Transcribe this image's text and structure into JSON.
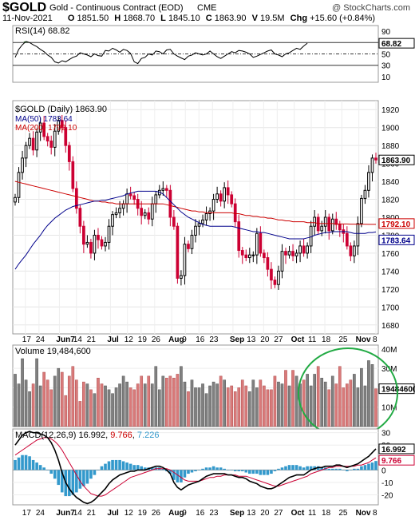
{
  "header": {
    "symbol": "$GOLD",
    "description": "Gold - Continuous Contract (EOD)",
    "exchange": "CME",
    "watermark": "@ StockCharts.com",
    "date": "11-Nov-2021",
    "open_label": "O",
    "open": "1851.50",
    "high_label": "H",
    "high": "1868.70",
    "low_label": "L",
    "low": "1845.10",
    "close_label": "C",
    "close": "1863.90",
    "volume_label": "V",
    "volume": "19.5M",
    "change_label": "Chg",
    "change": "+15.60 (+0.84%)"
  },
  "colors": {
    "up_candle": "#000000",
    "down_candle": "#cc0033",
    "ma50": "#00008b",
    "ma200": "#cc0000",
    "rsi_line": "#000000",
    "rsi_fill": "#3a7d3a",
    "vol_up": "#808080",
    "vol_down": "#d97a7a",
    "macd_hist": "#3399cc",
    "annotation_circle": "#22aa44"
  },
  "chart_data": [
    {
      "type": "line",
      "panel": "rsi",
      "label": "RSI(14) 68.82",
      "last_value_label": "68.82",
      "y_ticks": [
        "90",
        "70",
        "50",
        "30",
        "10"
      ],
      "ylim": [
        0,
        100
      ],
      "guides": [
        70,
        50,
        30
      ],
      "values": [
        44,
        58,
        66,
        72,
        70,
        66,
        63,
        58,
        54,
        48,
        44,
        36,
        34,
        38,
        36,
        40,
        44,
        46,
        52,
        50,
        48,
        45,
        50,
        47,
        46,
        56,
        55,
        60,
        57,
        53,
        58,
        56,
        51,
        36,
        33,
        42,
        44,
        50,
        48,
        55,
        54,
        50,
        57,
        58,
        50,
        46,
        43,
        40,
        46,
        48,
        52,
        50,
        48,
        50,
        55,
        50,
        45,
        42,
        46,
        50,
        54,
        52,
        56,
        55,
        53,
        50,
        44,
        46,
        49,
        52,
        55,
        57,
        50,
        48,
        45,
        50,
        52,
        56,
        60,
        58,
        64,
        68.82
      ]
    },
    {
      "type": "candlestick",
      "panel": "price",
      "label": "$GOLD (Daily) 1863.90",
      "last_value_label": "1863.90",
      "ylim": [
        1670,
        1930
      ],
      "y_ticks": [
        "1920",
        "1900",
        "1880",
        "1860",
        "1840",
        "1820",
        "1800",
        "1780",
        "1760",
        "1740",
        "1720",
        "1700",
        "1680"
      ],
      "x_labels": [
        "17",
        "24",
        "Jun7",
        "14",
        "21",
        "Jul",
        "12",
        "19",
        "26",
        "Aug",
        "9",
        "16",
        "23",
        "Sep",
        "13",
        "20",
        "27",
        "Oct",
        "11",
        "18",
        "25",
        "Nov",
        "8"
      ],
      "x_positions": [
        3,
        7,
        13,
        18,
        22,
        28,
        33,
        37,
        41,
        46,
        50,
        54,
        58,
        64,
        69,
        73,
        77,
        82,
        87,
        91,
        96,
        101,
        106
      ],
      "closes": [
        1822,
        1850,
        1866,
        1880,
        1888,
        1875,
        1895,
        1905,
        1890,
        1885,
        1878,
        1896,
        1908,
        1900,
        1880,
        1862,
        1832,
        1810,
        1790,
        1770,
        1772,
        1760,
        1780,
        1775,
        1768,
        1772,
        1790,
        1803,
        1805,
        1810,
        1815,
        1826,
        1824,
        1820,
        1810,
        1802,
        1805,
        1798,
        1815,
        1825,
        1830,
        1832,
        1830,
        1800,
        1790,
        1732,
        1735,
        1770,
        1765,
        1780,
        1790,
        1793,
        1797,
        1804,
        1807,
        1820,
        1826,
        1818,
        1833,
        1825,
        1815,
        1795,
        1763,
        1758,
        1755,
        1758,
        1758,
        1782,
        1760,
        1755,
        1742,
        1730,
        1725,
        1740,
        1762,
        1758,
        1762,
        1757,
        1760,
        1768,
        1760,
        1768,
        1790,
        1800,
        1785,
        1790,
        1800,
        1785,
        1798,
        1792,
        1786,
        1782,
        1768,
        1757,
        1768,
        1793,
        1821,
        1830,
        1850,
        1866,
        1863.9
      ],
      "ma50": [
        1742,
        1748,
        1753,
        1758,
        1764,
        1770,
        1775,
        1780,
        1786,
        1791,
        1795,
        1799,
        1802,
        1805,
        1808,
        1810,
        1812,
        1813,
        1814,
        1815,
        1816,
        1817,
        1818,
        1818,
        1819,
        1819,
        1820,
        1821,
        1822,
        1823,
        1824,
        1826,
        1827,
        1828,
        1829,
        1829,
        1829,
        1829,
        1829,
        1829,
        1828,
        1826,
        1822,
        1818,
        1814,
        1810,
        1806,
        1803,
        1800,
        1798,
        1796,
        1794,
        1792,
        1791,
        1790,
        1790,
        1790,
        1790,
        1790,
        1790,
        1790,
        1789,
        1788,
        1787,
        1786,
        1785,
        1784,
        1784,
        1783,
        1783,
        1782,
        1781,
        1780,
        1779,
        1778,
        1777,
        1776,
        1776,
        1776,
        1776,
        1776,
        1777,
        1778,
        1780,
        1781,
        1782,
        1783,
        1783,
        1784,
        1784,
        1784,
        1784,
        1784,
        1783,
        1782,
        1782,
        1782,
        1782,
        1783,
        1783,
        1783.64
      ],
      "ma50_label": "MA(50) 1783.64",
      "ma50_last": "1783.64",
      "ma200": [
        1840,
        1839,
        1838,
        1837,
        1836,
        1835,
        1834,
        1833,
        1832,
        1831,
        1830,
        1829,
        1828,
        1827,
        1826,
        1825,
        1824,
        1823,
        1822,
        1821,
        1820,
        1819,
        1818,
        1818,
        1817,
        1817,
        1816,
        1816,
        1815,
        1815,
        1815,
        1815,
        1815,
        1815,
        1815,
        1815,
        1815,
        1815,
        1815,
        1815,
        1815,
        1815,
        1814,
        1813,
        1812,
        1811,
        1810,
        1809,
        1808,
        1807,
        1807,
        1806,
        1806,
        1805,
        1805,
        1805,
        1805,
        1805,
        1805,
        1805,
        1805,
        1804,
        1804,
        1803,
        1802,
        1802,
        1801,
        1801,
        1800,
        1800,
        1799,
        1799,
        1798,
        1797,
        1797,
        1796,
        1796,
        1795,
        1795,
        1795,
        1795,
        1794,
        1794,
        1794,
        1793,
        1793,
        1793,
        1793,
        1793,
        1792.5,
        1792.5,
        1792.5,
        1792.5,
        1792.3,
        1792.3,
        1792.2,
        1792.2,
        1792.2,
        1792.1,
        1792.1,
        1792.1
      ],
      "ma200_label": "MA(200) 1792.10",
      "ma200_last": "1792.10"
    },
    {
      "type": "bar",
      "panel": "volume",
      "label": "Volume 19,484,600",
      "last_value_label": "19484600",
      "ylim": [
        0,
        42
      ],
      "y_ticks": [
        "40M",
        "30M",
        "20M",
        "10M"
      ],
      "values": [
        27,
        22,
        35,
        24,
        18,
        22,
        35,
        21,
        28,
        24,
        19,
        26,
        30,
        28,
        16,
        26,
        31,
        24,
        13,
        23,
        22,
        19,
        17,
        25,
        22,
        21,
        19,
        17,
        20,
        22,
        26,
        23,
        20,
        19,
        22,
        26,
        22,
        26,
        22,
        31,
        19,
        26,
        25,
        26,
        25,
        27,
        31,
        23,
        18,
        24,
        20,
        20,
        22,
        17,
        21,
        23,
        22,
        26,
        24,
        20,
        21,
        18,
        20,
        24,
        21,
        18,
        24,
        20,
        24,
        21,
        19,
        19,
        26,
        23,
        22,
        29,
        21,
        29,
        26,
        22,
        24,
        27,
        21,
        27,
        31,
        25,
        23,
        19,
        26,
        22,
        31,
        20,
        22,
        24,
        27,
        20,
        30,
        21,
        34,
        32,
        19.5
      ]
    },
    {
      "type": "line",
      "panel": "macd",
      "label": "MACD(12,26,9) 16.992, 9.766, 7.226",
      "name_label": "MACD(12,26,9)",
      "macd_value": "16.992",
      "signal_value": "9.766",
      "hist_value": "7.226",
      "ylim": [
        -28,
        33
      ],
      "y_ticks": [
        "30",
        "20",
        "10",
        "0",
        "-10",
        "-20"
      ],
      "macd": [
        20,
        24,
        28,
        30,
        31,
        30,
        30,
        29,
        28,
        26,
        22,
        16,
        8,
        -2,
        -10,
        -15,
        -19,
        -22,
        -24,
        -26,
        -27,
        -26,
        -24,
        -21,
        -18,
        -15,
        -11,
        -8,
        -6,
        -4,
        -3,
        -2,
        -1,
        -1,
        0,
        0,
        0,
        1,
        2,
        3,
        3,
        2,
        0,
        -3,
        -10,
        -14,
        -16,
        -14,
        -12,
        -11,
        -10,
        -9,
        -7,
        -5,
        -4,
        -3,
        -3,
        -3,
        -3,
        -4,
        -4,
        -5,
        -6,
        -6,
        -7,
        -9,
        -10,
        -11,
        -13,
        -14,
        -15,
        -15,
        -14,
        -12,
        -10,
        -8,
        -6,
        -5,
        -4,
        -4,
        -4,
        -2,
        0,
        1,
        2,
        2,
        3,
        3,
        3,
        4,
        4,
        3,
        2,
        3,
        4,
        5,
        7,
        9,
        11,
        14,
        16.992
      ],
      "signal": [
        12,
        14,
        16,
        18,
        20,
        22,
        24,
        25,
        26,
        26,
        25,
        23,
        20,
        16,
        11,
        6,
        1,
        -4,
        -9,
        -13,
        -16,
        -19,
        -20,
        -21,
        -21,
        -20,
        -18,
        -16,
        -14,
        -12,
        -10,
        -8,
        -6,
        -5,
        -4,
        -3,
        -2,
        -1,
        0,
        1,
        1,
        1,
        1,
        0,
        -2,
        -4,
        -6,
        -8,
        -9,
        -9,
        -9,
        -9,
        -8,
        -7,
        -6,
        -6,
        -5,
        -5,
        -4,
        -4,
        -4,
        -4,
        -5,
        -5,
        -5,
        -6,
        -7,
        -8,
        -9,
        -10,
        -11,
        -12,
        -13,
        -13,
        -12,
        -11,
        -10,
        -9,
        -8,
        -7,
        -6,
        -5,
        -3,
        -2,
        -1,
        0,
        1,
        2,
        2,
        3,
        3,
        3,
        3,
        3,
        3,
        4,
        4,
        5,
        6,
        8,
        9.766
      ],
      "hist": [
        8,
        10,
        12,
        12,
        11,
        8,
        6,
        4,
        2,
        0,
        -3,
        -7,
        -12,
        -18,
        -21,
        -21,
        -20,
        -18,
        -15,
        -13,
        -11,
        -7,
        -4,
        0,
        3,
        5,
        7,
        8,
        8,
        8,
        7,
        6,
        5,
        4,
        4,
        3,
        2,
        2,
        2,
        2,
        2,
        1,
        -1,
        -3,
        -8,
        -10,
        -10,
        -6,
        -3,
        -2,
        -1,
        0,
        1,
        2,
        2,
        3,
        2,
        2,
        1,
        0,
        0,
        -1,
        -1,
        -1,
        -2,
        -3,
        -3,
        -3,
        -4,
        -4,
        -4,
        -3,
        -1,
        1,
        2,
        3,
        4,
        4,
        4,
        3,
        2,
        3,
        3,
        3,
        3,
        2,
        2,
        1,
        1,
        1,
        1,
        0,
        -1,
        0,
        1,
        1,
        3,
        4,
        5,
        6,
        7.226
      ]
    }
  ]
}
